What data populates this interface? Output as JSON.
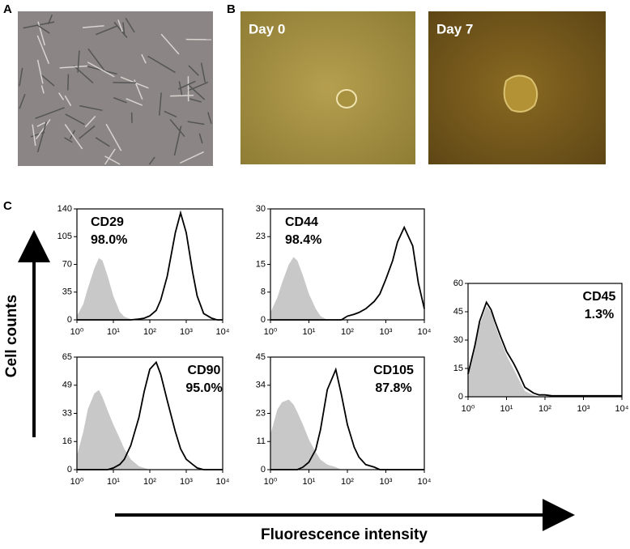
{
  "panels": [
    "A",
    "B",
    "C"
  ],
  "images": [
    "Day 0",
    "Day 7"
  ],
  "y_axis_label": "Cell counts",
  "x_axis_label": "Fluorescence intensity",
  "chart_data": [
    {
      "type": "area",
      "annotations": [
        "CD29",
        "98.0%"
      ],
      "xscale": "log",
      "x": [
        1,
        1.5,
        2,
        3,
        4,
        5,
        7,
        10,
        15,
        20,
        30,
        50,
        70,
        100,
        150,
        200,
        300,
        500,
        700,
        1000,
        1500,
        2000,
        3000,
        5000,
        7000,
        10000
      ],
      "series": [
        {
          "color": "#c8c8c8",
          "fill": true,
          "values": [
            5,
            20,
            40,
            65,
            78,
            75,
            55,
            30,
            10,
            4,
            1,
            0,
            0,
            0,
            0,
            0,
            0,
            0,
            0,
            0,
            0,
            0,
            0,
            0,
            0,
            0
          ]
        },
        {
          "color": "#000000",
          "fill": false,
          "values": [
            0,
            0,
            0,
            0,
            0,
            0,
            0,
            0,
            0,
            0,
            0,
            1,
            2,
            5,
            12,
            25,
            55,
            110,
            135,
            110,
            60,
            30,
            8,
            2,
            0,
            0
          ]
        }
      ],
      "xlim": [
        1,
        10000
      ],
      "xticks": [
        {
          "value": 1,
          "label": "10⁰"
        },
        {
          "value": 10,
          "label": "10¹"
        },
        {
          "value": 100,
          "label": "10²"
        },
        {
          "value": 1000,
          "label": "10³"
        },
        {
          "value": 10000,
          "label": "10⁴"
        }
      ],
      "ylim": [
        0,
        140
      ],
      "yticks": [
        0,
        35,
        70,
        105,
        140
      ]
    },
    {
      "type": "area",
      "annotations": [
        "CD44",
        "98.4%"
      ],
      "xscale": "log",
      "x": [
        1,
        1.5,
        2,
        3,
        4,
        5,
        7,
        10,
        15,
        20,
        30,
        50,
        70,
        100,
        150,
        200,
        300,
        500,
        700,
        1000,
        1500,
        2000,
        3000,
        5000,
        7000,
        10000
      ],
      "series": [
        {
          "color": "#c8c8c8",
          "fill": true,
          "values": [
            2,
            6,
            10,
            15,
            17,
            16,
            12,
            7,
            3,
            1,
            0,
            0,
            0,
            0,
            0,
            0,
            0,
            0,
            0,
            0,
            0,
            0,
            0,
            0,
            0,
            0
          ]
        },
        {
          "color": "#000000",
          "fill": false,
          "values": [
            0,
            0,
            0,
            0,
            0,
            0,
            0,
            0,
            0,
            0,
            0,
            0,
            0,
            1,
            1.5,
            2,
            3,
            5,
            7,
            11,
            16,
            21,
            25,
            20,
            10,
            3
          ]
        }
      ],
      "xlim": [
        1,
        10000
      ],
      "xticks": [
        {
          "value": 1,
          "label": "10⁰"
        },
        {
          "value": 10,
          "label": "10¹"
        },
        {
          "value": 100,
          "label": "10²"
        },
        {
          "value": 1000,
          "label": "10³"
        },
        {
          "value": 10000,
          "label": "10⁴"
        }
      ],
      "ylim": [
        0,
        30
      ],
      "yticks": [
        0,
        {
          "value": 7.5,
          "label": "8"
        },
        15,
        {
          "value": 22.5,
          "label": "23"
        },
        30
      ]
    },
    {
      "type": "area",
      "annotations": [
        "CD90",
        "95.0%"
      ],
      "xscale": "log",
      "x": [
        1,
        1.5,
        2,
        3,
        4,
        5,
        7,
        10,
        15,
        20,
        30,
        50,
        70,
        100,
        150,
        200,
        300,
        500,
        700,
        1000,
        1500,
        2000,
        3000,
        5000,
        7000,
        10000
      ],
      "series": [
        {
          "color": "#c8c8c8",
          "fill": true,
          "values": [
            8,
            22,
            35,
            44,
            46,
            42,
            34,
            26,
            18,
            12,
            6,
            2,
            1,
            0,
            0,
            0,
            0,
            0,
            0,
            0,
            0,
            0,
            0,
            0,
            0,
            0
          ]
        },
        {
          "color": "#000000",
          "fill": false,
          "values": [
            0,
            0,
            0,
            0,
            0,
            0,
            0,
            1,
            3,
            6,
            14,
            30,
            45,
            58,
            62,
            55,
            40,
            22,
            12,
            6,
            3,
            1,
            0,
            0,
            0,
            0
          ]
        }
      ],
      "xlim": [
        1,
        10000
      ],
      "xticks": [
        {
          "value": 1,
          "label": "10⁰"
        },
        {
          "value": 10,
          "label": "10¹"
        },
        {
          "value": 100,
          "label": "10²"
        },
        {
          "value": 1000,
          "label": "10³"
        },
        {
          "value": 10000,
          "label": "10⁴"
        }
      ],
      "ylim": [
        0,
        65
      ],
      "yticks": [
        0,
        {
          "value": 16.25,
          "label": "16"
        },
        {
          "value": 32.5,
          "label": "33"
        },
        {
          "value": 48.75,
          "label": "49"
        },
        65
      ]
    },
    {
      "type": "area",
      "annotations": [
        "CD105",
        "87.8%"
      ],
      "xscale": "log",
      "x": [
        1,
        1.5,
        2,
        3,
        4,
        5,
        7,
        10,
        15,
        20,
        30,
        50,
        70,
        100,
        150,
        200,
        300,
        500,
        700,
        1000,
        1500,
        2000,
        3000,
        5000,
        7000,
        10000
      ],
      "series": [
        {
          "color": "#c8c8c8",
          "fill": true,
          "values": [
            14,
            24,
            27,
            28,
            26,
            23,
            18,
            12,
            7,
            4,
            2,
            1,
            0,
            0,
            0,
            0,
            0,
            0,
            0,
            0,
            0,
            0,
            0,
            0,
            0,
            0
          ]
        },
        {
          "color": "#000000",
          "fill": false,
          "values": [
            0,
            0,
            0,
            0,
            0,
            0,
            1,
            3,
            8,
            16,
            32,
            40,
            30,
            18,
            9,
            5,
            2,
            1,
            0,
            0,
            0,
            0,
            0,
            0,
            0,
            0
          ]
        }
      ],
      "xlim": [
        1,
        10000
      ],
      "xticks": [
        {
          "value": 1,
          "label": "10⁰"
        },
        {
          "value": 10,
          "label": "10¹"
        },
        {
          "value": 100,
          "label": "10²"
        },
        {
          "value": 1000,
          "label": "10³"
        },
        {
          "value": 10000,
          "label": "10⁴"
        }
      ],
      "ylim": [
        0,
        45
      ],
      "yticks": [
        0,
        {
          "value": 11.25,
          "label": "11"
        },
        {
          "value": 22.5,
          "label": "23"
        },
        {
          "value": 33.75,
          "label": "34"
        },
        45
      ]
    },
    {
      "type": "area",
      "annotations": [
        "CD45",
        "1.3%"
      ],
      "xscale": "log",
      "x": [
        1,
        1.5,
        2,
        3,
        4,
        5,
        7,
        10,
        15,
        20,
        30,
        50,
        70,
        100,
        150,
        200,
        300,
        500,
        700,
        1000,
        1500,
        2000,
        3000,
        5000,
        7000,
        10000
      ],
      "series": [
        {
          "color": "#c8c8c8",
          "fill": true,
          "values": [
            10,
            25,
            38,
            48,
            45,
            38,
            30,
            22,
            15,
            10,
            3,
            1,
            0,
            0,
            0,
            0,
            0,
            0,
            0,
            0,
            0,
            0,
            0,
            0,
            0,
            0
          ]
        },
        {
          "color": "#000000",
          "fill": false,
          "values": [
            12,
            27,
            40,
            50,
            46,
            40,
            32,
            24,
            18,
            13,
            5,
            2,
            1,
            1,
            0.5,
            0.5,
            0.5,
            0.5,
            0.5,
            0.5,
            0.5,
            0.5,
            0.5,
            0.5,
            0.5,
            0.5
          ]
        }
      ],
      "xlim": [
        1,
        10000
      ],
      "xticks": [
        {
          "value": 1,
          "label": "10⁰"
        },
        {
          "value": 10,
          "label": "10¹"
        },
        {
          "value": 100,
          "label": "10²"
        },
        {
          "value": 1000,
          "label": "10³"
        },
        {
          "value": 10000,
          "label": "10⁴"
        }
      ],
      "ylim": [
        0,
        60
      ],
      "yticks": [
        0,
        15,
        30,
        45,
        60
      ]
    }
  ]
}
